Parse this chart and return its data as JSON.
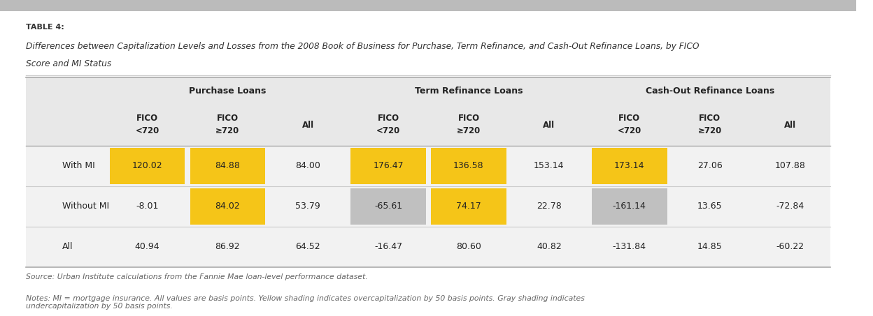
{
  "table_label": "TABLE 4:",
  "title_line1": "Differences between Capitalization Levels and Losses from the 2008 Book of Business for Purchase, Term Refinance, and Cash-Out Refinance Loans, by FICO",
  "title_line2": "Score and MI Status",
  "source": "Source: Urban Institute calculations from the Fannie Mae loan-level performance dataset.",
  "notes": "Notes: MI = mortgage insurance. All values are basis points. Yellow shading indicates overcapitalization by 50 basis points. Gray shading indicates\nundercapitalization by 50 basis points.",
  "col_groups": [
    {
      "name": "Purchase Loans"
    },
    {
      "name": "Term Refinance Loans"
    },
    {
      "name": "Cash-Out Refinance Loans"
    }
  ],
  "row_labels": [
    "With MI",
    "Without MI",
    "All"
  ],
  "data": [
    [
      "120.02",
      "84.88",
      "84.00",
      "176.47",
      "136.58",
      "153.14",
      "173.14",
      "27.06",
      "107.88"
    ],
    [
      "-8.01",
      "84.02",
      "53.79",
      "-65.61",
      "74.17",
      "22.78",
      "-161.14",
      "13.65",
      "-72.84"
    ],
    [
      "40.94",
      "86.92",
      "64.52",
      "-16.47",
      "80.60",
      "40.82",
      "-131.84",
      "14.85",
      "-60.22"
    ]
  ],
  "cell_colors": [
    [
      "#F5C518",
      "#F5C518",
      "#ffffff",
      "#F5C518",
      "#F5C518",
      "#ffffff",
      "#F5C518",
      "#ffffff",
      "#ffffff"
    ],
    [
      "#ffffff",
      "#F5C518",
      "#ffffff",
      "#C0C0C0",
      "#F5C518",
      "#ffffff",
      "#C0C0C0",
      "#ffffff",
      "#ffffff"
    ],
    [
      "#ffffff",
      "#ffffff",
      "#ffffff",
      "#ffffff",
      "#ffffff",
      "#ffffff",
      "#ffffff",
      "#ffffff",
      "#ffffff"
    ]
  ],
  "header_bg": "#E8E8E8",
  "table_bg": "#F2F2F2",
  "top_bar_color": "#BBBBBB",
  "divider_color": "#CCCCCC",
  "sub_headers": [
    "FICO",
    "FICO",
    "All",
    "FICO",
    "FICO",
    "All",
    "FICO",
    "FICO",
    "All"
  ],
  "sub_headers2": [
    "<720",
    "≥720",
    "",
    "<720",
    "≥720",
    "",
    "<720",
    "≥720",
    ""
  ]
}
